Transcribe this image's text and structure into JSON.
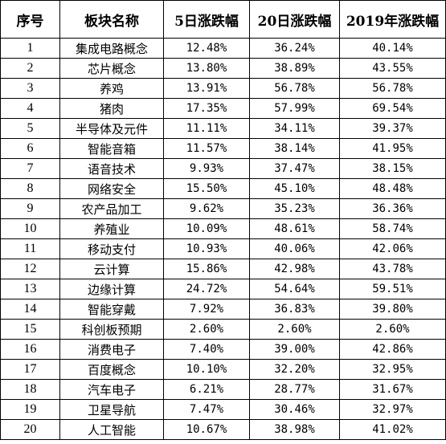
{
  "table": {
    "headers": [
      "序号",
      "板块名称",
      "5日涨跌幅",
      "20日涨跌幅",
      "2019年涨跌幅"
    ],
    "rows": [
      [
        "1",
        "集成电路概念",
        "12.48%",
        "36.24%",
        "40.14%"
      ],
      [
        "2",
        "芯片概念",
        "13.80%",
        "38.89%",
        "43.55%"
      ],
      [
        "3",
        "养鸡",
        "13.91%",
        "56.78%",
        "56.78%"
      ],
      [
        "4",
        "猪肉",
        "17.35%",
        "57.99%",
        "69.54%"
      ],
      [
        "5",
        "半导体及元件",
        "11.11%",
        "34.11%",
        "39.37%"
      ],
      [
        "6",
        "智能音箱",
        "11.57%",
        "38.14%",
        "41.95%"
      ],
      [
        "7",
        "语音技术",
        "9.93%",
        "37.47%",
        "38.15%"
      ],
      [
        "8",
        "网络安全",
        "15.50%",
        "45.10%",
        "48.48%"
      ],
      [
        "9",
        "农产品加工",
        "9.62%",
        "35.23%",
        "36.36%"
      ],
      [
        "10",
        "养殖业",
        "10.09%",
        "48.61%",
        "58.74%"
      ],
      [
        "11",
        "移动支付",
        "10.93%",
        "40.06%",
        "42.06%"
      ],
      [
        "12",
        "云计算",
        "15.86%",
        "42.98%",
        "43.78%"
      ],
      [
        "13",
        "边缘计算",
        "24.72%",
        "54.64%",
        "59.51%"
      ],
      [
        "14",
        "智能穿戴",
        "7.92%",
        "36.83%",
        "39.80%"
      ],
      [
        "15",
        "科创板预期",
        "2.60%",
        "2.60%",
        "2.60%"
      ],
      [
        "16",
        "消费电子",
        "7.40%",
        "39.00%",
        "42.86%"
      ],
      [
        "17",
        "百度概念",
        "10.10%",
        "32.20%",
        "32.95%"
      ],
      [
        "18",
        "汽车电子",
        "6.21%",
        "28.77%",
        "31.67%"
      ],
      [
        "19",
        "卫星导航",
        "7.47%",
        "30.46%",
        "32.97%"
      ],
      [
        "20",
        "人工智能",
        "10.67%",
        "38.98%",
        "41.02%"
      ]
    ]
  }
}
